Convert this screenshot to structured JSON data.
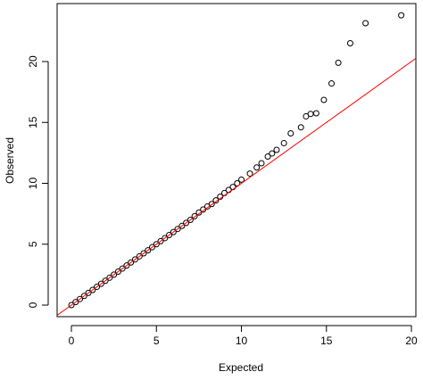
{
  "chart_data": {
    "type": "scatter",
    "x_label": "Expected",
    "y_label": "Observed",
    "series": [
      {
        "color": "#000000",
        "x": [
          0,
          0.25,
          0.5,
          0.75,
          1,
          1.25,
          1.5,
          1.75,
          2,
          2.25,
          2.5,
          2.75,
          3,
          3.25,
          3.5,
          3.75,
          4,
          4.25,
          4.5,
          4.75,
          5,
          5.25,
          5.5,
          5.75,
          6,
          6.25,
          6.5,
          6.75,
          7,
          7.25,
          7.5,
          7.75,
          8,
          8.25,
          8.5,
          8.75,
          9,
          9.25,
          9.5,
          9.75,
          10,
          10.5,
          10.9,
          11.18,
          11.55,
          11.8,
          12.07,
          12.5,
          12.9,
          13.5,
          13.8,
          14.07,
          14.4,
          14.85,
          15.3,
          15.7,
          16.4,
          17.3,
          19.4
        ],
        "values": [
          0,
          0.25,
          0.5,
          0.75,
          1,
          1.25,
          1.5,
          1.75,
          2,
          2.25,
          2.5,
          2.75,
          3,
          3.25,
          3.5,
          3.75,
          4,
          4.25,
          4.5,
          4.75,
          5,
          5.25,
          5.5,
          5.75,
          6,
          6.25,
          6.5,
          6.75,
          7,
          7.3,
          7.6,
          7.85,
          8.1,
          8.3,
          8.6,
          8.9,
          9.2,
          9.45,
          9.7,
          10,
          10.3,
          10.8,
          11.3,
          11.65,
          12.2,
          12.45,
          12.75,
          13.3,
          14.1,
          14.6,
          15.5,
          15.7,
          15.75,
          16.85,
          18.2,
          19.9,
          21.5,
          23.15,
          23.8
        ]
      }
    ],
    "reference_line": {
      "slope": 1,
      "intercept": 0,
      "color": "#ff0000"
    },
    "xlim": [
      -0.84,
      20.26
    ],
    "ylim": [
      -0.95,
      24.76
    ],
    "xticks": [
      0,
      5,
      10,
      15,
      20
    ],
    "yticks": [
      0,
      5,
      10,
      15,
      20
    ]
  }
}
